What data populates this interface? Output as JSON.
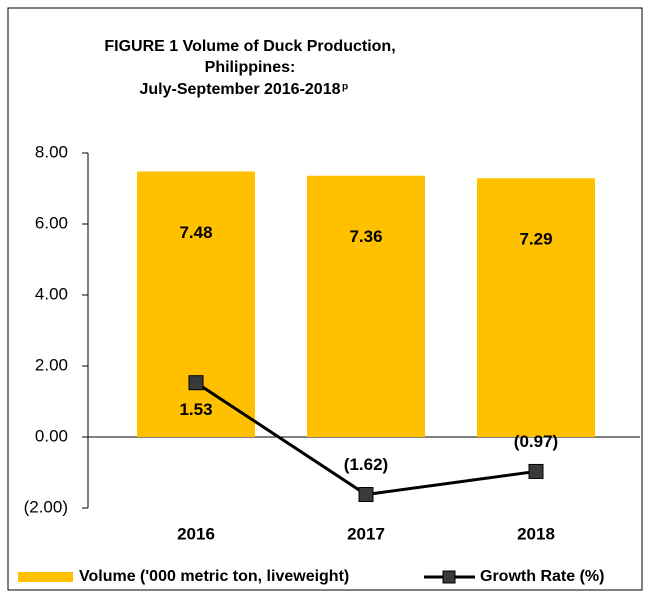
{
  "chart_data": {
    "type": "bar",
    "title": [
      "FIGURE 1  Volume of Duck Production,",
      "Philippines:",
      "July-September 2016-2018"
    ],
    "title_superscript": "p",
    "categories": [
      "2016",
      "2017",
      "2018"
    ],
    "series": [
      {
        "name": "Volume ('000 metric ton, liveweight)",
        "type": "bar",
        "color": "#ffc000",
        "values": [
          7.48,
          7.36,
          7.29
        ]
      },
      {
        "name": "Growth Rate (%)",
        "type": "line",
        "color": "#000000",
        "marker_color": "#3a3a3a",
        "values": [
          1.53,
          -1.62,
          -0.97
        ],
        "value_labels": [
          "1.53",
          "(1.62)",
          "(0.97)"
        ]
      }
    ],
    "ylim": [
      -2,
      8
    ],
    "yticks": [
      {
        "value": 8,
        "label": "8.00"
      },
      {
        "value": 6,
        "label": "6.00"
      },
      {
        "value": 4,
        "label": "4.00"
      },
      {
        "value": 2,
        "label": "2.00"
      },
      {
        "value": 0,
        "label": "0.00"
      },
      {
        "value": -2,
        "label": "(2.00)"
      }
    ],
    "legend": "bottom"
  }
}
